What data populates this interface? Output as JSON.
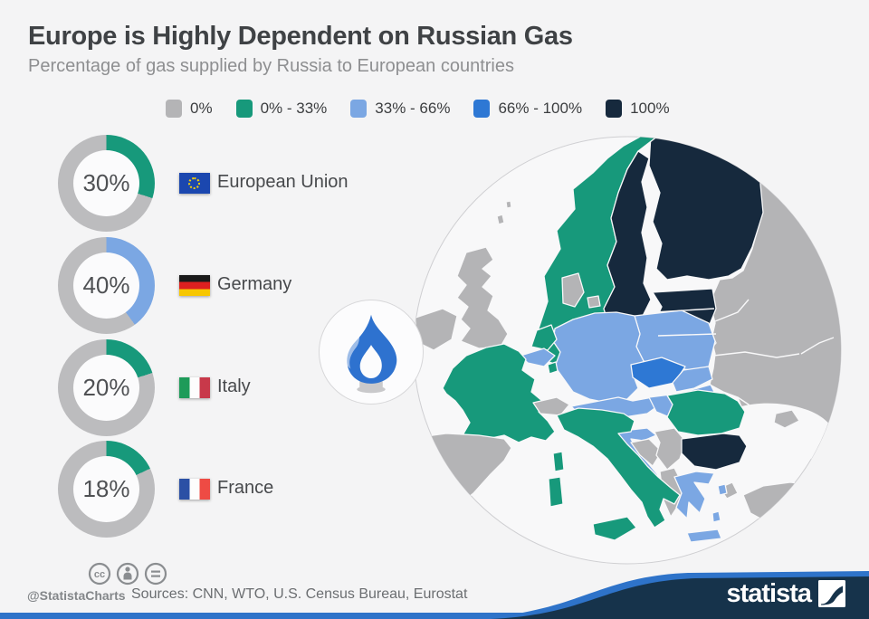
{
  "title": "Europe is Highly Dependent on Russian Gas",
  "subtitle": "Percentage of gas supplied by Russia to European countries",
  "colors": {
    "background": "#f4f4f5",
    "bin_0": "#b4b4b6",
    "bin_0_33": "#17997b",
    "bin_33_66": "#7ba7e3",
    "bin_66_100": "#2e78d4",
    "bin_100": "#16293d",
    "donut_track": "#bcbcbe",
    "donut_text": "#4f5154",
    "map_sea": "#f8f8f9",
    "map_circle_stroke": "#cfcfd2",
    "flame_blue": "#2e72cf",
    "flame_base_gray": "#c9c9cb",
    "wave_navy": "#16334b",
    "wave_blue": "#2e73c9"
  },
  "legend": {
    "items": [
      {
        "label": "0%",
        "bin": "0"
      },
      {
        "label": "0% - 33%",
        "bin": "0_33"
      },
      {
        "label": "33% - 66%",
        "bin": "33_66"
      },
      {
        "label": "66% - 100%",
        "bin": "66_100"
      },
      {
        "label": "100%",
        "bin": "100"
      }
    ]
  },
  "donuts": [
    {
      "country": "European Union",
      "pct_label": "30%",
      "value": 30,
      "bin": "0_33",
      "flag": "eu"
    },
    {
      "country": "Germany",
      "pct_label": "40%",
      "value": 40,
      "bin": "33_66",
      "flag": "de"
    },
    {
      "country": "Italy",
      "pct_label": "20%",
      "value": 20,
      "bin": "0_33",
      "flag": "it"
    },
    {
      "country": "France",
      "pct_label": "18%",
      "value": 18,
      "bin": "0_33",
      "flag": "fr"
    }
  ],
  "flags": {
    "eu": {
      "base": "#1b47af",
      "stars": "#f3cf0a"
    },
    "de": {
      "stripes": [
        "#1a1a1a",
        "#dd2020",
        "#f7c700"
      ],
      "direction": "horizontal"
    },
    "it": {
      "stripes": [
        "#1e9b59",
        "#fdfdfd",
        "#c8394a"
      ],
      "direction": "vertical"
    },
    "fr": {
      "stripes": [
        "#2b50a5",
        "#fdfdfd",
        "#ee4b44"
      ],
      "direction": "vertical"
    }
  },
  "map": {
    "shapes": [
      {
        "id": "russia-belarus-ukraine",
        "name": "Russia / Belarus / Ukraine",
        "bin": "0"
      },
      {
        "id": "morocco",
        "name": "North Africa",
        "bin": "0"
      },
      {
        "id": "turkey-europe",
        "name": "Turkey (European part)",
        "bin": "0"
      },
      {
        "id": "turkey",
        "name": "Turkey",
        "bin": "0"
      },
      {
        "id": "finland",
        "name": "Finland",
        "bin": "100"
      },
      {
        "id": "norway",
        "name": "Norway",
        "bin": "0_33"
      },
      {
        "id": "sweden",
        "name": "Sweden",
        "bin": "100"
      },
      {
        "id": "baltics",
        "name": "Estonia / Latvia / Lithuania",
        "bin": "100"
      },
      {
        "id": "kaliningrad",
        "name": "Kaliningrad (Russia)",
        "bin": "0"
      },
      {
        "id": "poland",
        "name": "Poland",
        "bin": "33_66"
      },
      {
        "id": "germany",
        "name": "Germany",
        "bin": "33_66"
      },
      {
        "id": "denmark",
        "name": "Denmark",
        "bin": "0"
      },
      {
        "id": "denmark-islands",
        "name": "Denmark islands",
        "bin": "0"
      },
      {
        "id": "uk",
        "name": "United Kingdom",
        "bin": "0"
      },
      {
        "id": "shetland",
        "name": "Shetland",
        "bin": "0"
      },
      {
        "id": "ireland",
        "name": "Ireland",
        "bin": "0"
      },
      {
        "id": "netherlands",
        "name": "Netherlands",
        "bin": "0_33"
      },
      {
        "id": "belgium",
        "name": "Belgium",
        "bin": "33_66"
      },
      {
        "id": "luxembourg",
        "name": "Luxembourg",
        "bin": "0_33"
      },
      {
        "id": "france",
        "name": "France",
        "bin": "0_33"
      },
      {
        "id": "corsica",
        "name": "Corsica (France)",
        "bin": "0_33"
      },
      {
        "id": "iberia",
        "name": "Spain / Portugal",
        "bin": "0"
      },
      {
        "id": "switzerland",
        "name": "Switzerland",
        "bin": "0"
      },
      {
        "id": "czech",
        "name": "Czech Republic",
        "bin": "66_100"
      },
      {
        "id": "slovakia",
        "name": "Slovakia",
        "bin": "33_66"
      },
      {
        "id": "austria",
        "name": "Austria",
        "bin": "33_66"
      },
      {
        "id": "hungary",
        "name": "Hungary",
        "bin": "33_66"
      },
      {
        "id": "slovenia",
        "name": "Slovenia",
        "bin": "33_66"
      },
      {
        "id": "croatia",
        "name": "Croatia",
        "bin": "33_66"
      },
      {
        "id": "bosnia",
        "name": "Bosnia and Herzegovina",
        "bin": "0"
      },
      {
        "id": "serbia",
        "name": "Serbia",
        "bin": "0"
      },
      {
        "id": "albania-macedonia",
        "name": "Albania / North Macedonia",
        "bin": "0"
      },
      {
        "id": "italy",
        "name": "Italy",
        "bin": "0_33"
      },
      {
        "id": "sicily",
        "name": "Sicily (Italy)",
        "bin": "0_33"
      },
      {
        "id": "sardinia",
        "name": "Sardinia (Italy)",
        "bin": "0_33"
      },
      {
        "id": "romania",
        "name": "Romania",
        "bin": "0_33"
      },
      {
        "id": "bulgaria",
        "name": "Bulgaria",
        "bin": "100"
      },
      {
        "id": "crimea",
        "name": "Crimea",
        "bin": "0"
      },
      {
        "id": "greece",
        "name": "Greece",
        "bin": "33_66"
      },
      {
        "id": "greek-island-1",
        "name": "Greek island",
        "bin": "33_66"
      },
      {
        "id": "greek-island-2",
        "name": "Greek island",
        "bin": "33_66"
      },
      {
        "id": "crete",
        "name": "Crete (Greece)",
        "bin": "33_66"
      }
    ]
  },
  "footer": {
    "license_icons": [
      "cc",
      "by",
      "nd"
    ],
    "handle": "@StatistaCharts",
    "sources": "Sources: CNN, WTO, U.S. Census Bureau, Eurostat",
    "brand": "statista"
  },
  "chart_data": [
    {
      "type": "pie",
      "variant": "donut-share-gauges",
      "title": "Percentage of gas supplied by Russia to European countries",
      "items": [
        {
          "label": "European Union",
          "value_pct": 30
        },
        {
          "label": "Germany",
          "value_pct": 40
        },
        {
          "label": "Italy",
          "value_pct": 20
        },
        {
          "label": "France",
          "value_pct": 18
        }
      ],
      "note": "Each donut shows the colored share vs a gray remainder; color of share follows the legend bin"
    },
    {
      "type": "heatmap",
      "variant": "choropleth-map-of-europe",
      "legend_bins": [
        "0%",
        "0% - 33%",
        "33% - 66%",
        "66% - 100%",
        "100%"
      ],
      "legend_position": "top",
      "country_bins": {
        "0%": [
          "United Kingdom",
          "Ireland",
          "Denmark",
          "Switzerland",
          "Spain",
          "Portugal",
          "Belarus",
          "Ukraine",
          "Moldova",
          "Serbia",
          "Bosnia and Herzegovina",
          "Albania",
          "North Macedonia",
          "Turkey",
          "Russia"
        ],
        "0% - 33%": [
          "Norway",
          "Netherlands",
          "Luxembourg",
          "France",
          "Italy",
          "Romania"
        ],
        "33% - 66%": [
          "Belgium",
          "Germany",
          "Poland",
          "Austria",
          "Slovakia",
          "Hungary",
          "Slovenia",
          "Croatia",
          "Greece"
        ],
        "66% - 100%": [
          "Czech Republic"
        ],
        "100%": [
          "Sweden",
          "Finland",
          "Estonia",
          "Latvia",
          "Lithuania",
          "Bulgaria"
        ]
      }
    }
  ]
}
